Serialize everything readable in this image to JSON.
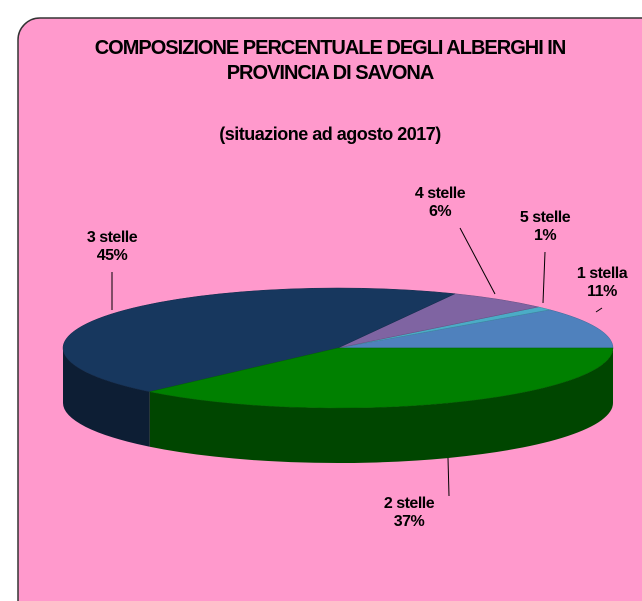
{
  "chart_data": {
    "type": "pie3d",
    "title": "COMPOSIZIONE PERCENTUALE DEGLI ALBERGHI IN PROVINCIA DI SAVONA",
    "subtitle": "(situazione ad agosto 2017)",
    "categories": [
      "1 stella",
      "5 stelle",
      "4 stelle",
      "3 stelle",
      "2 stelle"
    ],
    "values": [
      11,
      1,
      6,
      45,
      37
    ],
    "value_labels": [
      "11%",
      "1%",
      "6%",
      "45%",
      "37%"
    ],
    "colors": [
      "#4f81bd",
      "#4bacc6",
      "#7f64a2",
      "#17375e",
      "#008000"
    ]
  }
}
